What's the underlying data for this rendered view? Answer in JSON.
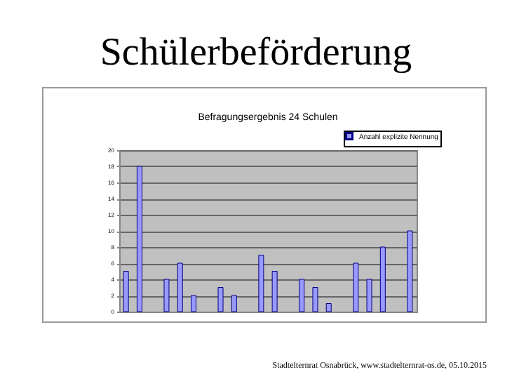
{
  "chart_data": {
    "type": "bar",
    "title": "Schülerbeförderung",
    "subtitle": "Befragungsergebnis 24 Schulen",
    "categories": [
      null,
      null,
      null,
      null,
      null,
      null,
      null,
      null,
      null,
      null,
      null,
      null,
      null,
      null,
      null,
      null,
      null,
      null,
      null,
      null,
      null,
      null
    ],
    "series": [
      {
        "name": "Anzahl explizite Nennung",
        "color": "#9999ff",
        "values": [
          5,
          18,
          null,
          4,
          6,
          2,
          null,
          3,
          2,
          null,
          7,
          5,
          null,
          4,
          3,
          1,
          null,
          6,
          4,
          8,
          null,
          10
        ]
      }
    ],
    "ylim": [
      0,
      20
    ],
    "yticks": [
      0,
      2,
      4,
      6,
      8,
      10,
      12,
      14,
      16,
      18,
      20
    ],
    "grid": "y",
    "legend": "top right",
    "annotations": [
      "Stadtelternrat Osnabrück, www.stadtelternrat-os.de, 05.10.2015"
    ]
  }
}
